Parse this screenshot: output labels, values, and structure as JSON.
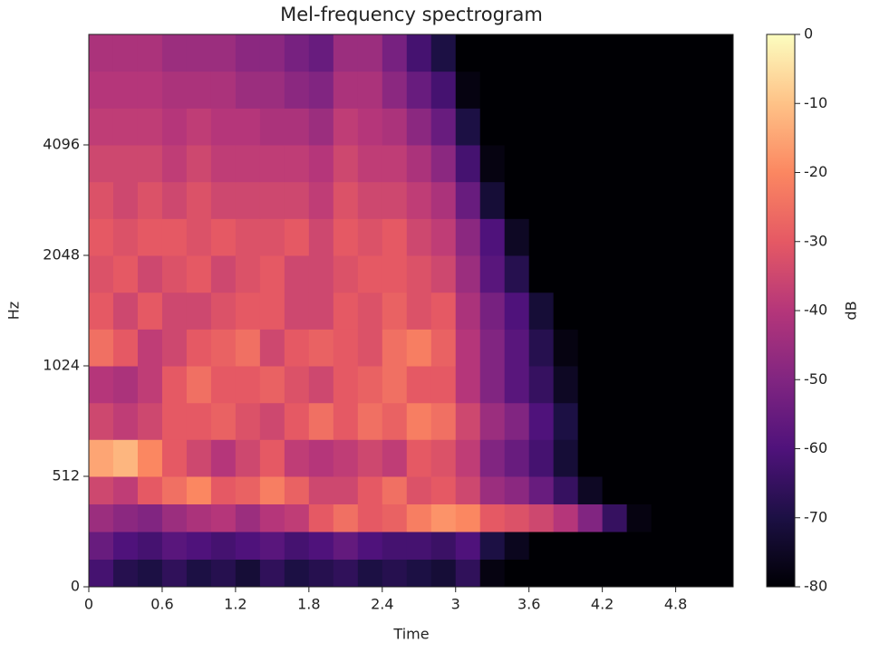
{
  "chart_data": {
    "type": "heatmap",
    "title": "Mel-frequency spectrogram",
    "x_label": "Time",
    "y_label": "Hz",
    "colorbar_label": "dB",
    "colormap": "magma",
    "x_edges": [
      0,
      0.2,
      0.4,
      0.6,
      0.8,
      1.0,
      1.2,
      1.4,
      1.6,
      1.8,
      2.0,
      2.2,
      2.4,
      2.6,
      2.8,
      3.0,
      3.2,
      3.4,
      3.6,
      3.8,
      4.0,
      4.2,
      4.4,
      4.6,
      4.8,
      5.0,
      5.27
    ],
    "y_edges": [
      0,
      128,
      256,
      384,
      512,
      683,
      853,
      1024,
      1365,
      1706,
      2048,
      2731,
      3413,
      4096,
      5461,
      6827,
      8192
    ],
    "z": [
      [
        -62,
        -68,
        -70,
        -66,
        -70,
        -68,
        -72,
        -66,
        -70,
        -68,
        -66,
        -70,
        -68,
        -70,
        -72,
        -66,
        -78,
        -80,
        -80,
        -80,
        -80,
        -80,
        -80,
        -80,
        -80,
        -80
      ],
      [
        -55,
        -60,
        -62,
        -58,
        -60,
        -62,
        -60,
        -58,
        -62,
        -60,
        -56,
        -60,
        -62,
        -62,
        -64,
        -60,
        -70,
        -76,
        -80,
        -80,
        -80,
        -80,
        -80,
        -80,
        -80,
        -80
      ],
      [
        -45,
        -48,
        -50,
        -45,
        -42,
        -40,
        -45,
        -40,
        -38,
        -30,
        -25,
        -30,
        -28,
        -22,
        -18,
        -20,
        -30,
        -32,
        -35,
        -40,
        -50,
        -65,
        -78,
        -80,
        -80,
        -80
      ],
      [
        -35,
        -38,
        -30,
        -25,
        -20,
        -30,
        -28,
        -22,
        -28,
        -35,
        -35,
        -30,
        -25,
        -32,
        -30,
        -35,
        -45,
        -48,
        -55,
        -65,
        -75,
        -80,
        -80,
        -80,
        -80,
        -80
      ],
      [
        -15,
        -12,
        -20,
        -30,
        -35,
        -40,
        -35,
        -30,
        -38,
        -40,
        -38,
        -35,
        -38,
        -30,
        -32,
        -38,
        -50,
        -55,
        -62,
        -72,
        -80,
        -80,
        -80,
        -80,
        -80,
        -80
      ],
      [
        -35,
        -38,
        -35,
        -30,
        -30,
        -28,
        -32,
        -35,
        -30,
        -25,
        -30,
        -25,
        -28,
        -22,
        -25,
        -35,
        -45,
        -50,
        -60,
        -70,
        -80,
        -80,
        -80,
        -80,
        -80,
        -80
      ],
      [
        -40,
        -42,
        -38,
        -30,
        -25,
        -30,
        -30,
        -28,
        -32,
        -35,
        -30,
        -28,
        -25,
        -30,
        -30,
        -40,
        -50,
        -58,
        -65,
        -75,
        -80,
        -80,
        -80,
        -80,
        -80,
        -80
      ],
      [
        -25,
        -30,
        -38,
        -35,
        -30,
        -28,
        -25,
        -35,
        -30,
        -28,
        -30,
        -32,
        -25,
        -22,
        -28,
        -40,
        -50,
        -58,
        -68,
        -78,
        -80,
        -80,
        -80,
        -80,
        -80,
        -80
      ],
      [
        -30,
        -35,
        -30,
        -35,
        -35,
        -32,
        -30,
        -30,
        -35,
        -35,
        -30,
        -32,
        -28,
        -32,
        -30,
        -42,
        -52,
        -60,
        -72,
        -80,
        -80,
        -80,
        -80,
        -80,
        -80,
        -80
      ],
      [
        -32,
        -30,
        -35,
        -32,
        -30,
        -35,
        -32,
        -30,
        -35,
        -35,
        -32,
        -30,
        -30,
        -32,
        -35,
        -45,
        -58,
        -68,
        -80,
        -80,
        -80,
        -80,
        -80,
        -80,
        -80,
        -80
      ],
      [
        -30,
        -32,
        -30,
        -30,
        -32,
        -30,
        -32,
        -32,
        -30,
        -35,
        -30,
        -32,
        -30,
        -35,
        -38,
        -48,
        -60,
        -75,
        -80,
        -80,
        -80,
        -80,
        -80,
        -80,
        -80,
        -80
      ],
      [
        -32,
        -35,
        -32,
        -35,
        -32,
        -35,
        -35,
        -35,
        -35,
        -38,
        -32,
        -35,
        -35,
        -38,
        -42,
        -55,
        -72,
        -80,
        -80,
        -80,
        -80,
        -80,
        -80,
        -80,
        -80,
        -80
      ],
      [
        -35,
        -35,
        -35,
        -38,
        -35,
        -38,
        -38,
        -38,
        -38,
        -40,
        -35,
        -38,
        -38,
        -42,
        -48,
        -62,
        -78,
        -80,
        -80,
        -80,
        -80,
        -80,
        -80,
        -80,
        -80,
        -80
      ],
      [
        -38,
        -38,
        -38,
        -40,
        -38,
        -40,
        -40,
        -42,
        -42,
        -45,
        -38,
        -40,
        -42,
        -48,
        -55,
        -70,
        -80,
        -80,
        -80,
        -80,
        -80,
        -80,
        -80,
        -80,
        -80,
        -80
      ],
      [
        -40,
        -40,
        -40,
        -42,
        -42,
        -42,
        -45,
        -45,
        -48,
        -50,
        -42,
        -42,
        -48,
        -55,
        -62,
        -78,
        -80,
        -80,
        -80,
        -80,
        -80,
        -80,
        -80,
        -80,
        -80,
        -80
      ],
      [
        -42,
        -42,
        -42,
        -45,
        -45,
        -45,
        -48,
        -48,
        -52,
        -55,
        -45,
        -45,
        -52,
        -62,
        -70,
        -80,
        -80,
        -80,
        -80,
        -80,
        -80,
        -80,
        -80,
        -80,
        -80,
        -80
      ]
    ],
    "xlim": [
      0,
      5.27
    ],
    "ylim": [
      0,
      8192
    ],
    "zlim": [
      -80,
      0
    ],
    "xticks": [
      0,
      0.6,
      1.2,
      1.8,
      2.4,
      3,
      3.6,
      4.2,
      4.8
    ],
    "yticks": [
      0,
      512,
      1024,
      2048,
      4096
    ],
    "zticks": [
      0,
      -10,
      -20,
      -30,
      -40,
      -50,
      -60,
      -70,
      -80
    ]
  }
}
